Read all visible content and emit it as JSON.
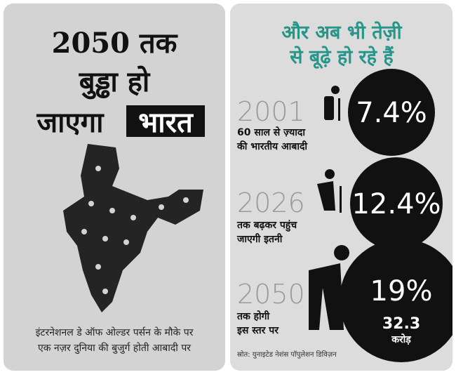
{
  "left": {
    "title": [
      "2050 तक",
      "बुड्ढा हो",
      "जाएगा",
      "भारत"
    ],
    "caption": [
      "इंटरनेशनल डे ऑफ ओल्डर पर्सन के मौके पर",
      "एक नज़र दुनिया की बुजुर्ग होती आबादी पर"
    ]
  },
  "right": {
    "heading": [
      "और अब भी तेज़ी",
      "से बूढ़े हो रहे हैं"
    ],
    "rows": [
      {
        "year": "2001",
        "description": [
          "60 साल से ज़्यादा",
          "की भारतीय आबादी"
        ],
        "value": "7.4%"
      },
      {
        "year": "2026",
        "description": [
          "तक बढ़कर पहुंच",
          "जाएगी इतनी"
        ],
        "value": "12.4%"
      },
      {
        "year": "2050",
        "description": [
          "तक होगी",
          "इस स्तर पर"
        ],
        "value": "19%",
        "extra": [
          "32.3",
          "करोड़"
        ]
      }
    ],
    "source": "स्रोत: युनाइटेड नेशंस पॉपुलेशन डिविज़न"
  }
}
